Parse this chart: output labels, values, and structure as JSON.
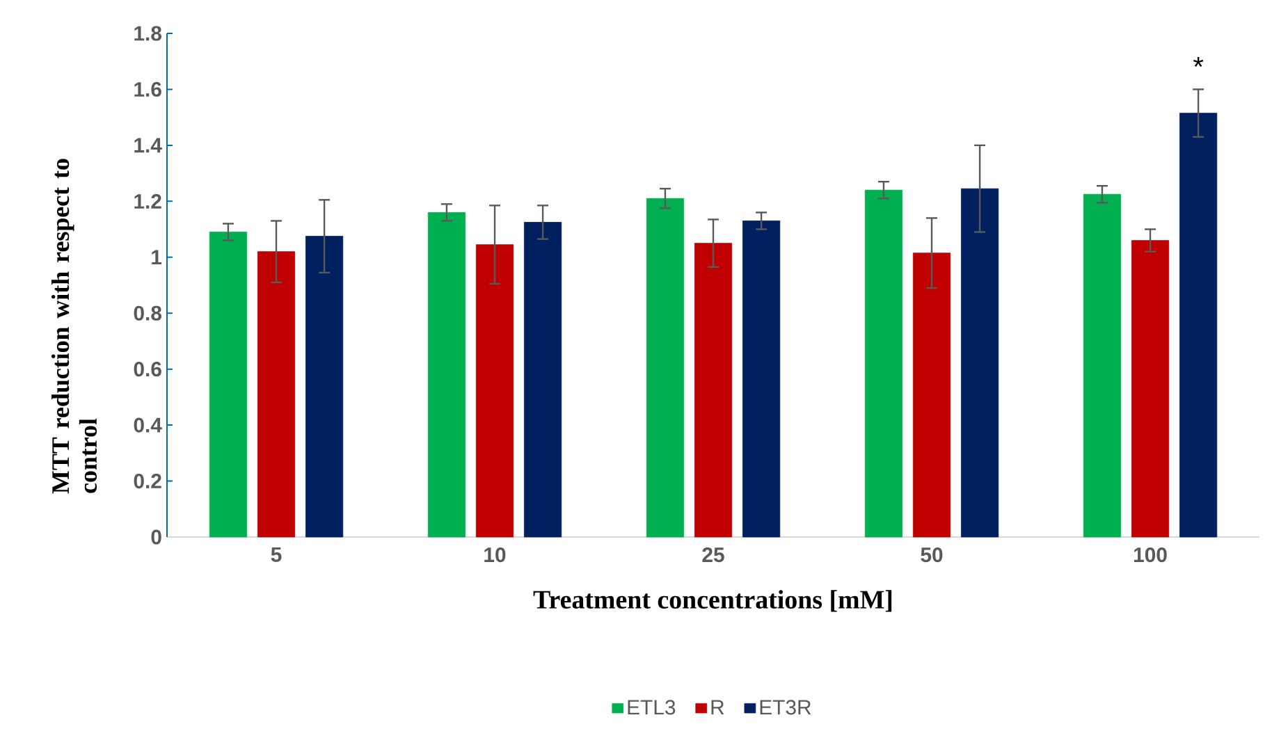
{
  "chart_data": {
    "type": "bar",
    "xlabel": "Treatment concentrations [mM]",
    "ylabel": "MTT reduction with respect to control",
    "categories": [
      "5",
      "10",
      "25",
      "50",
      "100"
    ],
    "series": [
      {
        "name": "ETL3",
        "color": "#00b050",
        "values": [
          1.09,
          1.16,
          1.21,
          1.24,
          1.225
        ],
        "errors": [
          0.03,
          0.03,
          0.035,
          0.03,
          0.03
        ]
      },
      {
        "name": "R",
        "color": "#c00000",
        "values": [
          1.02,
          1.045,
          1.05,
          1.015,
          1.06
        ],
        "errors": [
          0.11,
          0.14,
          0.085,
          0.125,
          0.04
        ]
      },
      {
        "name": "ET3R",
        "color": "#002060",
        "values": [
          1.075,
          1.125,
          1.13,
          1.245,
          1.515
        ],
        "errors": [
          0.13,
          0.06,
          0.03,
          0.155,
          0.085
        ]
      }
    ],
    "ylim": [
      0,
      1.8
    ],
    "yticks": [
      0,
      0.2,
      0.4,
      0.6,
      0.8,
      1,
      1.2,
      1.4,
      1.6,
      1.8
    ],
    "annotations": [
      "*"
    ],
    "grid": false,
    "legend": "bottom"
  }
}
